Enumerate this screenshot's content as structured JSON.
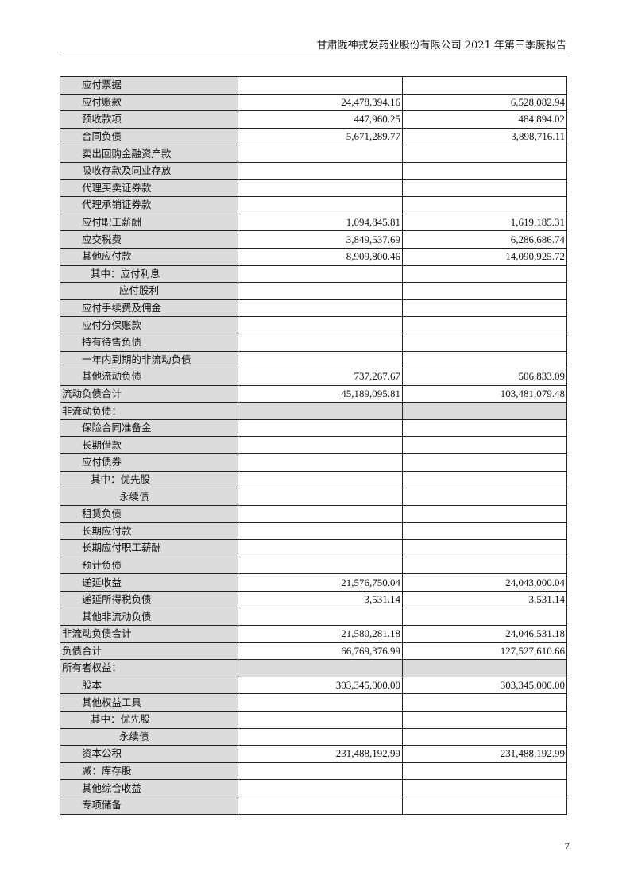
{
  "header": {
    "title": "甘肃陇神戎发药业股份有限公司 2021 年第三季度报告"
  },
  "rows": [
    {
      "label": "应付票据",
      "v1": "",
      "v2": "",
      "indent": 1
    },
    {
      "label": "应付账款",
      "v1": "24,478,394.16",
      "v2": "6,528,082.94",
      "indent": 1
    },
    {
      "label": "预收款项",
      "v1": "447,960.25",
      "v2": "484,894.02",
      "indent": 1
    },
    {
      "label": "合同负债",
      "v1": "5,671,289.77",
      "v2": "3,898,716.11",
      "indent": 1
    },
    {
      "label": "卖出回购金融资产款",
      "v1": "",
      "v2": "",
      "indent": 1
    },
    {
      "label": "吸收存款及同业存放",
      "v1": "",
      "v2": "",
      "indent": 1
    },
    {
      "label": "代理买卖证券款",
      "v1": "",
      "v2": "",
      "indent": 1
    },
    {
      "label": "代理承销证券款",
      "v1": "",
      "v2": "",
      "indent": 1
    },
    {
      "label": "应付职工薪酬",
      "v1": "1,094,845.81",
      "v2": "1,619,185.31",
      "indent": 1
    },
    {
      "label": "应交税费",
      "v1": "3,849,537.69",
      "v2": "6,286,686.74",
      "indent": 1
    },
    {
      "label": "其他应付款",
      "v1": "8,909,800.46",
      "v2": "14,090,925.72",
      "indent": 1
    },
    {
      "label": "其中：应付利息",
      "v1": "",
      "v2": "",
      "indent": 2
    },
    {
      "label": "应付股利",
      "v1": "",
      "v2": "",
      "indent": 3
    },
    {
      "label": "应付手续费及佣金",
      "v1": "",
      "v2": "",
      "indent": 1
    },
    {
      "label": "应付分保账款",
      "v1": "",
      "v2": "",
      "indent": 1
    },
    {
      "label": "持有待售负债",
      "v1": "",
      "v2": "",
      "indent": 1
    },
    {
      "label": "一年内到期的非流动负债",
      "v1": "",
      "v2": "",
      "indent": 1
    },
    {
      "label": "其他流动负债",
      "v1": "737,267.67",
      "v2": "506,833.09",
      "indent": 1
    },
    {
      "label": "流动负债合计",
      "v1": "45,189,095.81",
      "v2": "103,481,079.48",
      "indent": 0
    },
    {
      "label": "非流动负债：",
      "v1": "",
      "v2": "",
      "indent": 0,
      "section": true
    },
    {
      "label": "保险合同准备金",
      "v1": "",
      "v2": "",
      "indent": 1
    },
    {
      "label": "长期借款",
      "v1": "",
      "v2": "",
      "indent": 1
    },
    {
      "label": "应付债券",
      "v1": "",
      "v2": "",
      "indent": 1
    },
    {
      "label": "其中：优先股",
      "v1": "",
      "v2": "",
      "indent": 2
    },
    {
      "label": "永续债",
      "v1": "",
      "v2": "",
      "indent": 3
    },
    {
      "label": "租赁负债",
      "v1": "",
      "v2": "",
      "indent": 1
    },
    {
      "label": "长期应付款",
      "v1": "",
      "v2": "",
      "indent": 1
    },
    {
      "label": "长期应付职工薪酬",
      "v1": "",
      "v2": "",
      "indent": 1
    },
    {
      "label": "预计负债",
      "v1": "",
      "v2": "",
      "indent": 1
    },
    {
      "label": "递延收益",
      "v1": "21,576,750.04",
      "v2": "24,043,000.04",
      "indent": 1
    },
    {
      "label": "递延所得税负债",
      "v1": "3,531.14",
      "v2": "3,531.14",
      "indent": 1
    },
    {
      "label": "其他非流动负债",
      "v1": "",
      "v2": "",
      "indent": 1
    },
    {
      "label": "非流动负债合计",
      "v1": "21,580,281.18",
      "v2": "24,046,531.18",
      "indent": 0
    },
    {
      "label": "负债合计",
      "v1": "66,769,376.99",
      "v2": "127,527,610.66",
      "indent": 0
    },
    {
      "label": "所有者权益：",
      "v1": "",
      "v2": "",
      "indent": 0,
      "section": true
    },
    {
      "label": "股本",
      "v1": "303,345,000.00",
      "v2": "303,345,000.00",
      "indent": 1
    },
    {
      "label": "其他权益工具",
      "v1": "",
      "v2": "",
      "indent": 1
    },
    {
      "label": "其中：优先股",
      "v1": "",
      "v2": "",
      "indent": 2
    },
    {
      "label": "永续债",
      "v1": "",
      "v2": "",
      "indent": 3
    },
    {
      "label": "资本公积",
      "v1": "231,488,192.99",
      "v2": "231,488,192.99",
      "indent": 1
    },
    {
      "label": "减：库存股",
      "v1": "",
      "v2": "",
      "indent": 1
    },
    {
      "label": "其他综合收益",
      "v1": "",
      "v2": "",
      "indent": 1
    },
    {
      "label": "专项储备",
      "v1": "",
      "v2": "",
      "indent": 1
    }
  ],
  "footer": {
    "page_number": "7"
  }
}
